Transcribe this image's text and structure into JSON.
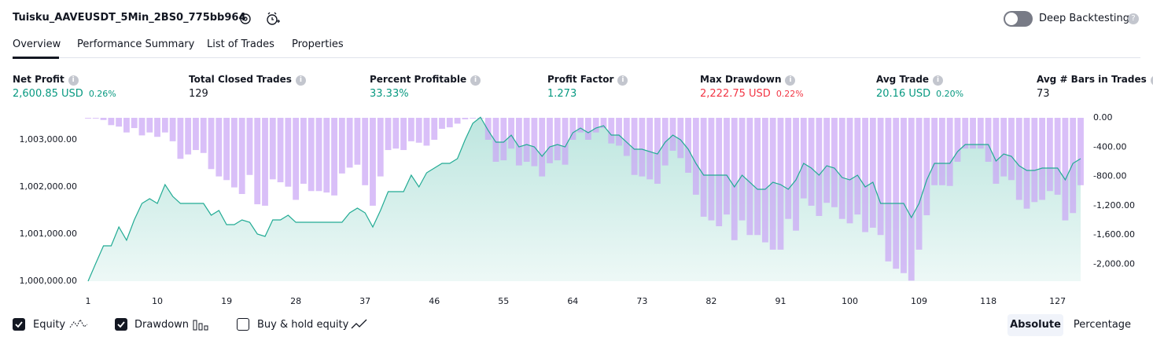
{
  "header": {
    "title": "Tuisku_AAVEUSDT_5Min_2BS0_775bb964",
    "toggle": "Deep Backtesting"
  },
  "tabs": [
    "Overview",
    "Performance Summary",
    "List of Trades",
    "Properties"
  ],
  "metrics": [
    {
      "label": "Net Profit",
      "value": "2,600.85 USD",
      "percent": "0.26%",
      "color": "#089981"
    },
    {
      "label": "Total Closed Trades",
      "value": 129,
      "color": "#131722"
    },
    {
      "label": "Percent Profitable",
      "value": "33.33%",
      "color": "#089981"
    },
    {
      "label": "Profit Factor",
      "value": 1.273,
      "color": "#089981"
    },
    {
      "label": "Max Drawdown",
      "value": "2,222.75 USD",
      "percent": "0.22%",
      "color": "#f23645"
    },
    {
      "label": "Avg Trade",
      "value": "20.16 USD",
      "percent": "0.20%",
      "color": "#089981"
    },
    {
      "label": "Avg # Bars in Trades",
      "value": 73,
      "color": "#131722"
    }
  ],
  "chart_data": {
    "type": "equity-drawdown",
    "grid": false,
    "x": [
      1,
      2,
      3,
      4,
      5,
      6,
      7,
      8,
      9,
      10,
      11,
      12,
      13,
      14,
      15,
      16,
      17,
      18,
      19,
      20,
      21,
      22,
      23,
      24,
      25,
      26,
      27,
      28,
      29,
      30,
      31,
      32,
      33,
      34,
      35,
      36,
      37,
      38,
      39,
      40,
      41,
      42,
      43,
      44,
      45,
      46,
      47,
      48,
      49,
      50,
      51,
      52,
      53,
      54,
      55,
      56,
      57,
      58,
      59,
      60,
      61,
      62,
      63,
      64,
      65,
      66,
      67,
      68,
      69,
      70,
      71,
      72,
      73,
      74,
      75,
      76,
      77,
      78,
      79,
      80,
      81,
      82,
      83,
      84,
      85,
      86,
      87,
      88,
      89,
      90,
      91,
      92,
      93,
      94,
      95,
      96,
      97,
      98,
      99,
      100,
      101,
      102,
      103,
      104,
      105,
      106,
      107,
      108,
      109,
      110,
      111,
      112,
      113,
      114,
      115,
      116,
      117,
      118,
      119,
      120,
      121,
      122,
      123,
      124,
      125,
      126,
      127,
      128,
      129,
      130
    ],
    "xlim": [
      1,
      130
    ],
    "xticks": [
      1,
      10,
      19,
      28,
      37,
      46,
      55,
      64,
      73,
      82,
      91,
      100,
      109,
      118,
      127
    ],
    "ylim": [
      1000000,
      1003467
    ],
    "yticks": [
      {
        "value": 1000000,
        "label": "1,000,000.00"
      },
      {
        "value": 1001000,
        "label": "1,001,000.00"
      },
      {
        "value": 1002000,
        "label": "1,002,000.00"
      },
      {
        "value": 1003000,
        "label": "1,003,000.00"
      }
    ],
    "y2lim": [
      -2230,
      0
    ],
    "y2ticks": [
      {
        "value": 0,
        "label": "0.00"
      },
      {
        "value": -400,
        "label": "-400.00"
      },
      {
        "value": -800,
        "label": "-800.00"
      },
      {
        "value": -1200,
        "label": "-1,200.00"
      },
      {
        "value": -1600,
        "label": "-1,600.00"
      },
      {
        "value": -2000,
        "label": "-2,000.00"
      }
    ],
    "series": [
      {
        "name": "Equity",
        "color": "#22ab94",
        "values": [
          1000000,
          1000380,
          1000750,
          1000750,
          1001150,
          1000870,
          1001300,
          1001650,
          1001750,
          1001650,
          1002050,
          1001800,
          1001650,
          1001650,
          1001650,
          1001650,
          1001400,
          1001500,
          1001200,
          1001200,
          1001300,
          1001250,
          1001000,
          1000950,
          1001300,
          1001300,
          1001400,
          1001250,
          1001250,
          1001250,
          1001250,
          1001250,
          1001250,
          1001250,
          1001450,
          1001550,
          1001450,
          1001150,
          1001500,
          1001900,
          1001900,
          1001900,
          1002250,
          1002000,
          1002300,
          1002400,
          1002500,
          1002500,
          1002600,
          1003000,
          1003350,
          1003480,
          1003200,
          1002950,
          1002950,
          1003100,
          1002850,
          1002900,
          1002850,
          1002650,
          1002850,
          1002900,
          1002850,
          1003150,
          1003250,
          1003150,
          1003250,
          1003300,
          1003100,
          1003100,
          1002950,
          1002800,
          1002800,
          1002750,
          1002700,
          1002950,
          1003100,
          1003000,
          1002800,
          1002500,
          1002250,
          1002250,
          1002250,
          1002250,
          1002000,
          1002250,
          1002100,
          1001950,
          1001950,
          1002100,
          1002050,
          1001950,
          1002150,
          1002500,
          1002400,
          1002250,
          1002450,
          1002400,
          1002200,
          1002150,
          1002250,
          1002000,
          1002100,
          1001650,
          1001650,
          1001650,
          1001650,
          1001350,
          1001650,
          1002150,
          1002500,
          1002500,
          1002500,
          1002750,
          1002900,
          1002900,
          1002900,
          1002900,
          1002550,
          1002700,
          1002650,
          1002450,
          1002350,
          1002350,
          1002400,
          1002400,
          1002400,
          1002150,
          1002500,
          1002600
        ]
      },
      {
        "name": "Drawdown",
        "color": "#c9a4f5",
        "axis": "y2",
        "values": [
          -10,
          -10,
          -30,
          -100,
          -120,
          -200,
          -140,
          -240,
          -200,
          -260,
          -200,
          -320,
          -560,
          -500,
          -440,
          -480,
          -700,
          -800,
          -850,
          -950,
          -1040,
          -780,
          -1180,
          -1200,
          -840,
          -880,
          -940,
          -1120,
          -900,
          -1000,
          -1000,
          -1020,
          -1060,
          -760,
          -680,
          -640,
          -920,
          -1200,
          -800,
          -440,
          -420,
          -440,
          -320,
          -340,
          -380,
          -300,
          -150,
          -130,
          -80,
          -20,
          -10,
          -10,
          -300,
          -600,
          -580,
          -420,
          -650,
          -600,
          -660,
          -800,
          -620,
          -580,
          -640,
          -300,
          -200,
          -300,
          -200,
          -140,
          -350,
          -380,
          -520,
          -780,
          -800,
          -840,
          -900,
          -650,
          -450,
          -550,
          -750,
          -1050,
          -1350,
          -1400,
          -1480,
          -1320,
          -1670,
          -1400,
          -1600,
          -1600,
          -1700,
          -1800,
          -1800,
          -1380,
          -1540,
          -1100,
          -1200,
          -1340,
          -1160,
          -1220,
          -1380,
          -1440,
          -1320,
          -1560,
          -1500,
          -1600,
          -1960,
          -2060,
          -2120,
          -2222.75,
          -1800,
          -1330,
          -920,
          -920,
          -930,
          -600,
          -420,
          -420,
          -420,
          -600,
          -900,
          -800,
          -850,
          -1120,
          -1240,
          -1150,
          -1120,
          -1000,
          -1050,
          -1400,
          -1300,
          -920
        ]
      }
    ]
  },
  "controls": {
    "extra": "Buy & hold equity",
    "modes": [
      "Absolute",
      "Percentage"
    ]
  }
}
